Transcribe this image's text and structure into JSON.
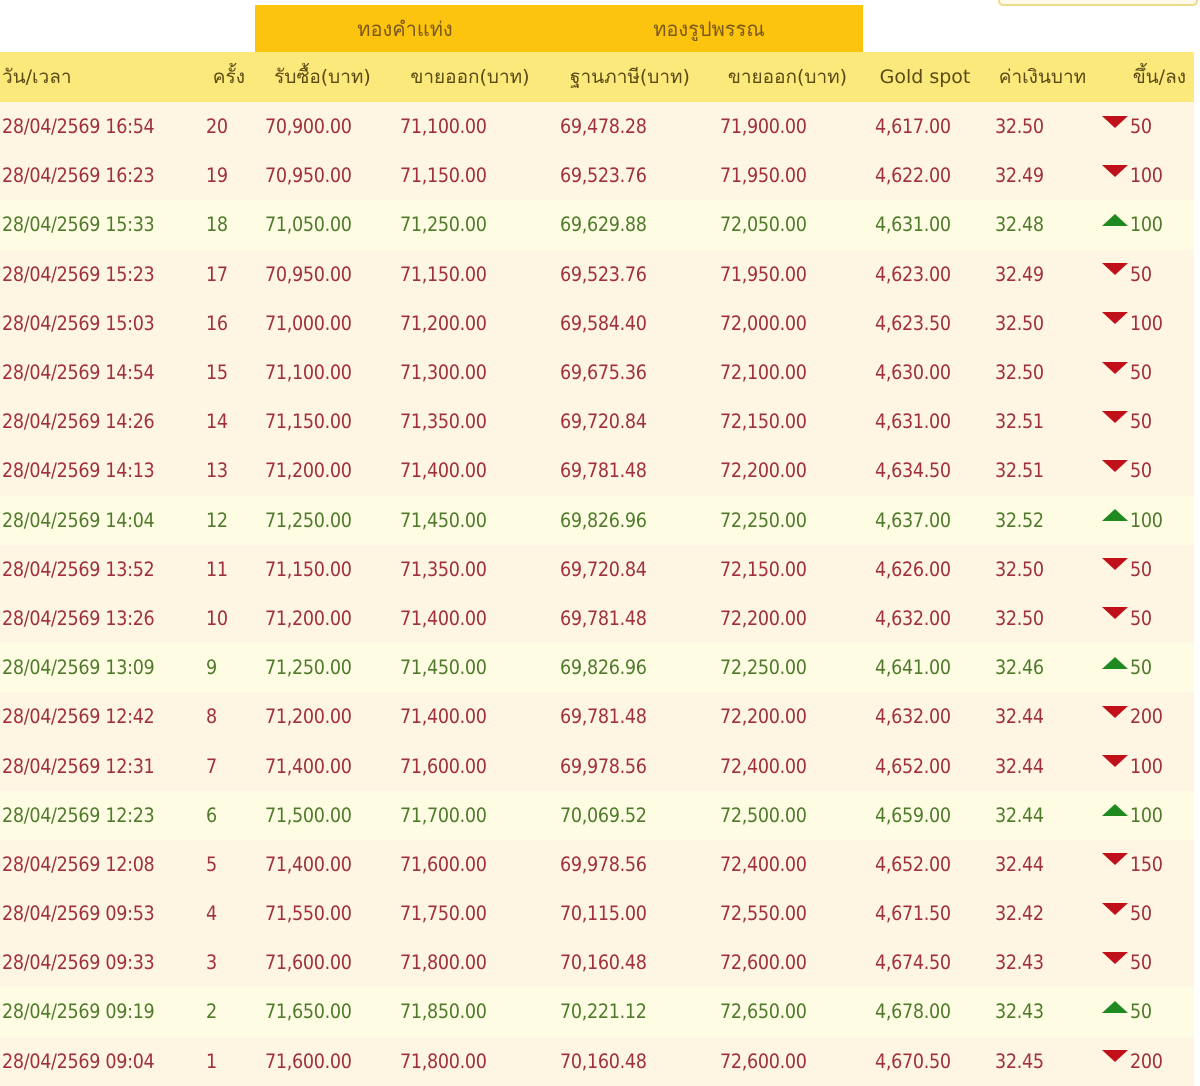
{
  "group_headers": {
    "bar_gold": "ทองคำแท่ง",
    "ornament_gold": "ทองรูปพรรณ"
  },
  "columns": {
    "datetime": "วัน/เวลา",
    "round": "ครั้ง",
    "bar_buy": "รับซื้อ(บาท)",
    "bar_sell": "ขายออก(บาท)",
    "ornament_base": "ฐานภาษี(บาท)",
    "ornament_sell": "ขายออก(บาท)",
    "gold_spot": "Gold spot",
    "thb_rate": "ค่าเงินบาท",
    "change": "ขึ้น/ลง"
  },
  "colors": {
    "group_header_bg": "#fcc30f",
    "column_header_bg": "#fce97c",
    "down_row_bg": "#fef6e3",
    "up_row_bg": "#fefde3",
    "down_text": "#a0303a",
    "up_text": "#4f7a2c",
    "down_arrow": "#c0101a",
    "up_arrow": "#1f8a1f"
  },
  "rows": [
    {
      "datetime": "28/04/2569 16:54",
      "round": "20",
      "bar_buy": "70,900.00",
      "bar_sell": "71,100.00",
      "ornament_base": "69,478.28",
      "ornament_sell": "71,900.00",
      "gold_spot": "4,617.00",
      "thb_rate": "32.50",
      "direction": "down",
      "change": "50"
    },
    {
      "datetime": "28/04/2569 16:23",
      "round": "19",
      "bar_buy": "70,950.00",
      "bar_sell": "71,150.00",
      "ornament_base": "69,523.76",
      "ornament_sell": "71,950.00",
      "gold_spot": "4,622.00",
      "thb_rate": "32.49",
      "direction": "down",
      "change": "100"
    },
    {
      "datetime": "28/04/2569 15:33",
      "round": "18",
      "bar_buy": "71,050.00",
      "bar_sell": "71,250.00",
      "ornament_base": "69,629.88",
      "ornament_sell": "72,050.00",
      "gold_spot": "4,631.00",
      "thb_rate": "32.48",
      "direction": "up",
      "change": "100"
    },
    {
      "datetime": "28/04/2569 15:23",
      "round": "17",
      "bar_buy": "70,950.00",
      "bar_sell": "71,150.00",
      "ornament_base": "69,523.76",
      "ornament_sell": "71,950.00",
      "gold_spot": "4,623.00",
      "thb_rate": "32.49",
      "direction": "down",
      "change": "50"
    },
    {
      "datetime": "28/04/2569 15:03",
      "round": "16",
      "bar_buy": "71,000.00",
      "bar_sell": "71,200.00",
      "ornament_base": "69,584.40",
      "ornament_sell": "72,000.00",
      "gold_spot": "4,623.50",
      "thb_rate": "32.50",
      "direction": "down",
      "change": "100"
    },
    {
      "datetime": "28/04/2569 14:54",
      "round": "15",
      "bar_buy": "71,100.00",
      "bar_sell": "71,300.00",
      "ornament_base": "69,675.36",
      "ornament_sell": "72,100.00",
      "gold_spot": "4,630.00",
      "thb_rate": "32.50",
      "direction": "down",
      "change": "50"
    },
    {
      "datetime": "28/04/2569 14:26",
      "round": "14",
      "bar_buy": "71,150.00",
      "bar_sell": "71,350.00",
      "ornament_base": "69,720.84",
      "ornament_sell": "72,150.00",
      "gold_spot": "4,631.00",
      "thb_rate": "32.51",
      "direction": "down",
      "change": "50"
    },
    {
      "datetime": "28/04/2569 14:13",
      "round": "13",
      "bar_buy": "71,200.00",
      "bar_sell": "71,400.00",
      "ornament_base": "69,781.48",
      "ornament_sell": "72,200.00",
      "gold_spot": "4,634.50",
      "thb_rate": "32.51",
      "direction": "down",
      "change": "50"
    },
    {
      "datetime": "28/04/2569 14:04",
      "round": "12",
      "bar_buy": "71,250.00",
      "bar_sell": "71,450.00",
      "ornament_base": "69,826.96",
      "ornament_sell": "72,250.00",
      "gold_spot": "4,637.00",
      "thb_rate": "32.52",
      "direction": "up",
      "change": "100"
    },
    {
      "datetime": "28/04/2569 13:52",
      "round": "11",
      "bar_buy": "71,150.00",
      "bar_sell": "71,350.00",
      "ornament_base": "69,720.84",
      "ornament_sell": "72,150.00",
      "gold_spot": "4,626.00",
      "thb_rate": "32.50",
      "direction": "down",
      "change": "50"
    },
    {
      "datetime": "28/04/2569 13:26",
      "round": "10",
      "bar_buy": "71,200.00",
      "bar_sell": "71,400.00",
      "ornament_base": "69,781.48",
      "ornament_sell": "72,200.00",
      "gold_spot": "4,632.00",
      "thb_rate": "32.50",
      "direction": "down",
      "change": "50"
    },
    {
      "datetime": "28/04/2569 13:09",
      "round": "9",
      "bar_buy": "71,250.00",
      "bar_sell": "71,450.00",
      "ornament_base": "69,826.96",
      "ornament_sell": "72,250.00",
      "gold_spot": "4,641.00",
      "thb_rate": "32.46",
      "direction": "up",
      "change": "50"
    },
    {
      "datetime": "28/04/2569 12:42",
      "round": "8",
      "bar_buy": "71,200.00",
      "bar_sell": "71,400.00",
      "ornament_base": "69,781.48",
      "ornament_sell": "72,200.00",
      "gold_spot": "4,632.00",
      "thb_rate": "32.44",
      "direction": "down",
      "change": "200"
    },
    {
      "datetime": "28/04/2569 12:31",
      "round": "7",
      "bar_buy": "71,400.00",
      "bar_sell": "71,600.00",
      "ornament_base": "69,978.56",
      "ornament_sell": "72,400.00",
      "gold_spot": "4,652.00",
      "thb_rate": "32.44",
      "direction": "down",
      "change": "100"
    },
    {
      "datetime": "28/04/2569 12:23",
      "round": "6",
      "bar_buy": "71,500.00",
      "bar_sell": "71,700.00",
      "ornament_base": "70,069.52",
      "ornament_sell": "72,500.00",
      "gold_spot": "4,659.00",
      "thb_rate": "32.44",
      "direction": "up",
      "change": "100"
    },
    {
      "datetime": "28/04/2569 12:08",
      "round": "5",
      "bar_buy": "71,400.00",
      "bar_sell": "71,600.00",
      "ornament_base": "69,978.56",
      "ornament_sell": "72,400.00",
      "gold_spot": "4,652.00",
      "thb_rate": "32.44",
      "direction": "down",
      "change": "150"
    },
    {
      "datetime": "28/04/2569 09:53",
      "round": "4",
      "bar_buy": "71,550.00",
      "bar_sell": "71,750.00",
      "ornament_base": "70,115.00",
      "ornament_sell": "72,550.00",
      "gold_spot": "4,671.50",
      "thb_rate": "32.42",
      "direction": "down",
      "change": "50"
    },
    {
      "datetime": "28/04/2569 09:33",
      "round": "3",
      "bar_buy": "71,600.00",
      "bar_sell": "71,800.00",
      "ornament_base": "70,160.48",
      "ornament_sell": "72,600.00",
      "gold_spot": "4,674.50",
      "thb_rate": "32.43",
      "direction": "down",
      "change": "50"
    },
    {
      "datetime": "28/04/2569 09:19",
      "round": "2",
      "bar_buy": "71,650.00",
      "bar_sell": "71,850.00",
      "ornament_base": "70,221.12",
      "ornament_sell": "72,650.00",
      "gold_spot": "4,678.00",
      "thb_rate": "32.43",
      "direction": "up",
      "change": "50"
    },
    {
      "datetime": "28/04/2569 09:04",
      "round": "1",
      "bar_buy": "71,600.00",
      "bar_sell": "71,800.00",
      "ornament_base": "70,160.48",
      "ornament_sell": "72,600.00",
      "gold_spot": "4,670.50",
      "thb_rate": "32.45",
      "direction": "down",
      "change": "200"
    }
  ]
}
